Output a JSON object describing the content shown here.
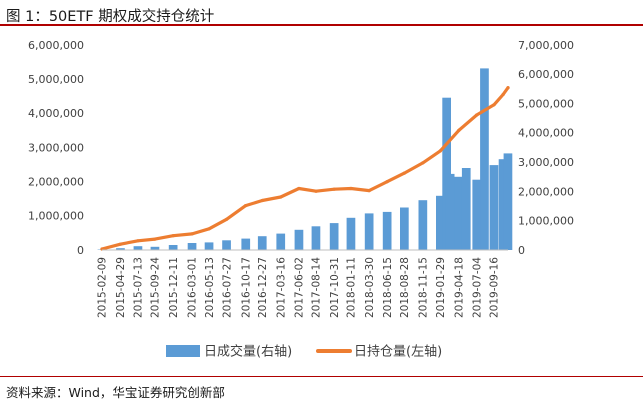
{
  "figure": {
    "title": "图 1：50ETF 期权成交持仓统计",
    "source": "资料来源：Wind，华宝证券研究创新部"
  },
  "colors": {
    "volume": "#5b9bd5",
    "open_interest": "#ed7d31",
    "rule": "#b00000"
  },
  "chart_data": {
    "type": "bar+line",
    "title": "",
    "legend": {
      "position": "bottom"
    },
    "grid": false,
    "x_axis": {
      "type": "date",
      "range": [
        "2015-02-09",
        "2019-11-15"
      ],
      "tick_labels": [
        "2015-02-09",
        "2015-04-29",
        "2015-07-13",
        "2015-09-24",
        "2015-12-11",
        "2016-03-01",
        "2016-05-13",
        "2016-07-27",
        "2016-10-17",
        "2016-12-27",
        "2017-03-16",
        "2017-06-02",
        "2017-08-14",
        "2017-10-31",
        "2018-01-11",
        "2018-03-30",
        "2018-06-15",
        "2018-08-28",
        "2018-11-15",
        "2019-01-29",
        "2019-04-18",
        "2019-07-04",
        "2019-09-16"
      ]
    },
    "y_left": {
      "range": [
        0,
        6000000
      ],
      "tick_labels": [
        "0",
        "1,000,000",
        "2,000,000",
        "3,000,000",
        "4,000,000",
        "5,000,000",
        "6,000,000"
      ]
    },
    "y_right": {
      "range": [
        0,
        7000000
      ],
      "tick_labels": [
        "0",
        "1,000,000",
        "2,000,000",
        "3,000,000",
        "4,000,000",
        "5,000,000",
        "6,000,000",
        "7,000,000"
      ]
    },
    "series": [
      {
        "name": "日成交量(右轴)",
        "type": "bar",
        "axis": "right",
        "points": [
          [
            "2015-02-09",
            15000
          ],
          [
            "2015-04-29",
            60000
          ],
          [
            "2015-07-13",
            130000
          ],
          [
            "2015-09-24",
            110000
          ],
          [
            "2015-12-11",
            170000
          ],
          [
            "2016-03-01",
            240000
          ],
          [
            "2016-05-13",
            260000
          ],
          [
            "2016-07-27",
            330000
          ],
          [
            "2016-10-17",
            390000
          ],
          [
            "2016-12-27",
            470000
          ],
          [
            "2017-03-16",
            560000
          ],
          [
            "2017-06-02",
            690000
          ],
          [
            "2017-08-14",
            810000
          ],
          [
            "2017-10-31",
            920000
          ],
          [
            "2018-01-11",
            1100000
          ],
          [
            "2018-03-30",
            1250000
          ],
          [
            "2018-06-15",
            1300000
          ],
          [
            "2018-08-28",
            1450000
          ],
          [
            "2018-11-15",
            1700000
          ],
          [
            "2019-01-29",
            1850000
          ],
          [
            "2019-02-25",
            5200000
          ],
          [
            "2019-03-12",
            2600000
          ],
          [
            "2019-04-18",
            2500000
          ],
          [
            "2019-05-20",
            2800000
          ],
          [
            "2019-07-04",
            2400000
          ],
          [
            "2019-08-06",
            6200000
          ],
          [
            "2019-09-16",
            2900000
          ],
          [
            "2019-10-25",
            3100000
          ],
          [
            "2019-11-15",
            3300000
          ]
        ]
      },
      {
        "name": "日持仓量(左轴)",
        "type": "line",
        "axis": "left",
        "points": [
          [
            "2015-02-09",
            30000
          ],
          [
            "2015-04-29",
            170000
          ],
          [
            "2015-07-13",
            270000
          ],
          [
            "2015-09-24",
            320000
          ],
          [
            "2015-12-11",
            420000
          ],
          [
            "2016-03-01",
            470000
          ],
          [
            "2016-05-13",
            620000
          ],
          [
            "2016-07-27",
            900000
          ],
          [
            "2016-10-17",
            1300000
          ],
          [
            "2016-12-27",
            1450000
          ],
          [
            "2017-03-16",
            1550000
          ],
          [
            "2017-06-02",
            1800000
          ],
          [
            "2017-08-14",
            1720000
          ],
          [
            "2017-10-31",
            1780000
          ],
          [
            "2018-01-11",
            1800000
          ],
          [
            "2018-03-30",
            1740000
          ],
          [
            "2018-06-15",
            2000000
          ],
          [
            "2018-08-28",
            2250000
          ],
          [
            "2018-11-15",
            2550000
          ],
          [
            "2019-01-29",
            2900000
          ],
          [
            "2019-04-18",
            3500000
          ],
          [
            "2019-07-04",
            3950000
          ],
          [
            "2019-09-16",
            4250000
          ],
          [
            "2019-10-25",
            4550000
          ],
          [
            "2019-11-15",
            4750000
          ]
        ]
      }
    ]
  }
}
